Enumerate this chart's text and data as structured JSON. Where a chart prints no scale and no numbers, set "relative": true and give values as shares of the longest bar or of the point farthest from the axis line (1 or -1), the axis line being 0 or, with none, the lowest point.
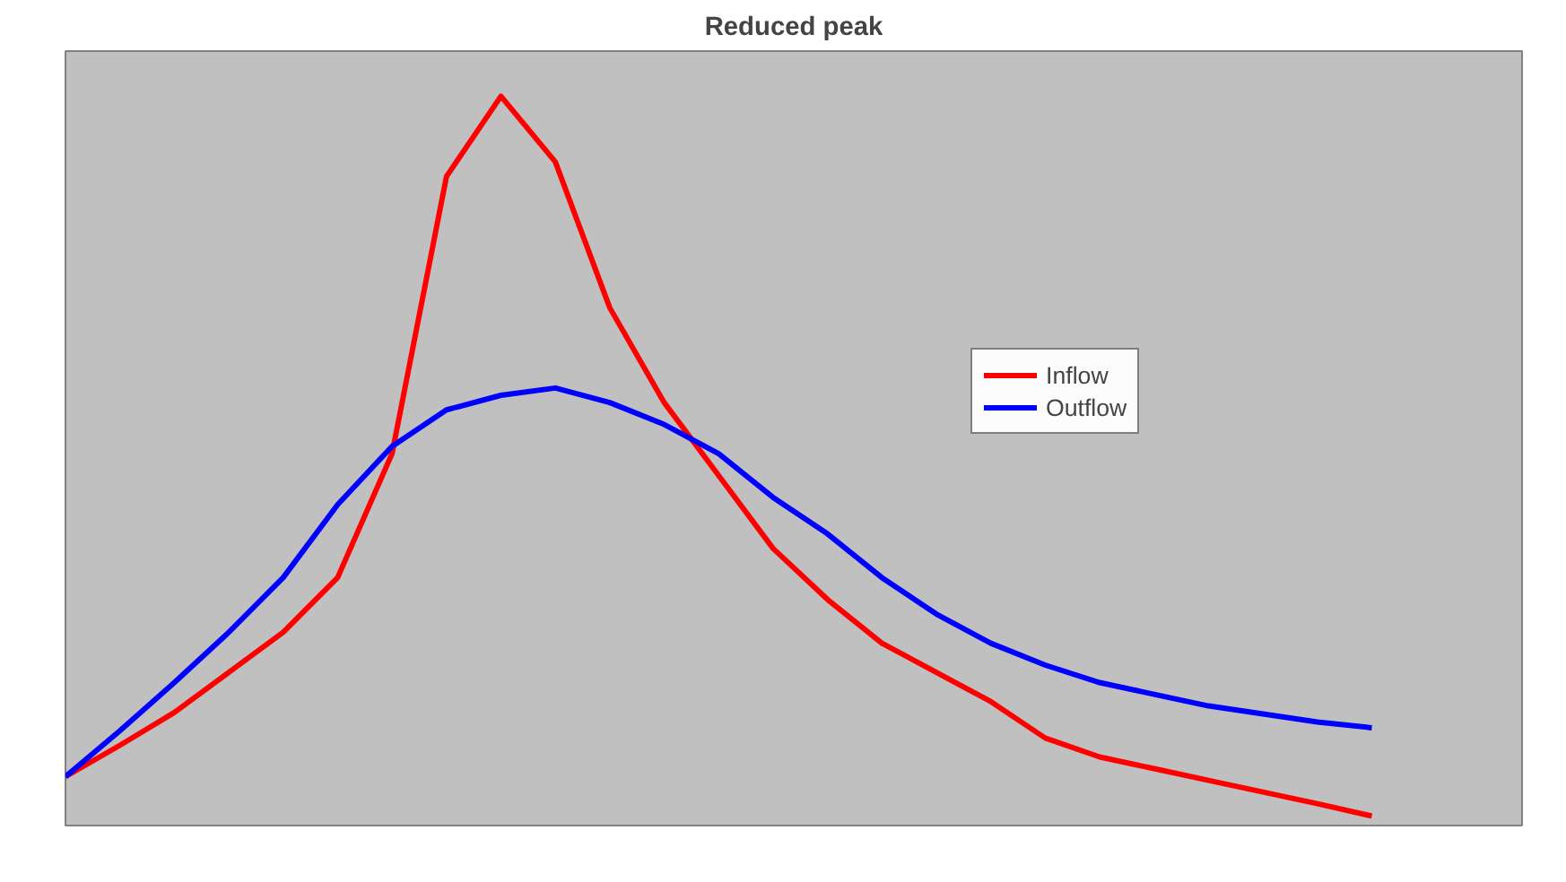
{
  "chart_data": {
    "type": "line",
    "title": "Reduced peak",
    "relative": true,
    "grid": false,
    "legend": "top right",
    "categories": [
      null,
      null,
      null,
      null,
      null,
      null,
      null,
      null,
      null,
      null,
      null,
      null,
      null,
      null,
      null,
      null,
      null,
      null,
      null,
      null,
      null,
      null,
      null,
      null,
      null
    ],
    "series": [
      {
        "name": "Inflow",
        "color": "#ff0000",
        "values": [
          0.067,
          0.11,
          0.155,
          0.21,
          0.265,
          0.34,
          0.51,
          0.89,
          1,
          0.91,
          0.71,
          0.58,
          0.48,
          0.38,
          0.31,
          0.25,
          0.21,
          0.17,
          0.12,
          0.094,
          0.078,
          0.062,
          0.046,
          0.03,
          0.013
        ]
      },
      {
        "name": "Outflow",
        "color": "#0000ff",
        "values": [
          0.067,
          0.13,
          0.196,
          0.265,
          0.34,
          0.44,
          0.52,
          0.57,
          0.59,
          0.6,
          0.58,
          0.55,
          0.51,
          0.45,
          0.4,
          0.34,
          0.29,
          0.25,
          0.22,
          0.196,
          0.18,
          0.164,
          0.153,
          0.142,
          0.134
        ]
      }
    ]
  }
}
